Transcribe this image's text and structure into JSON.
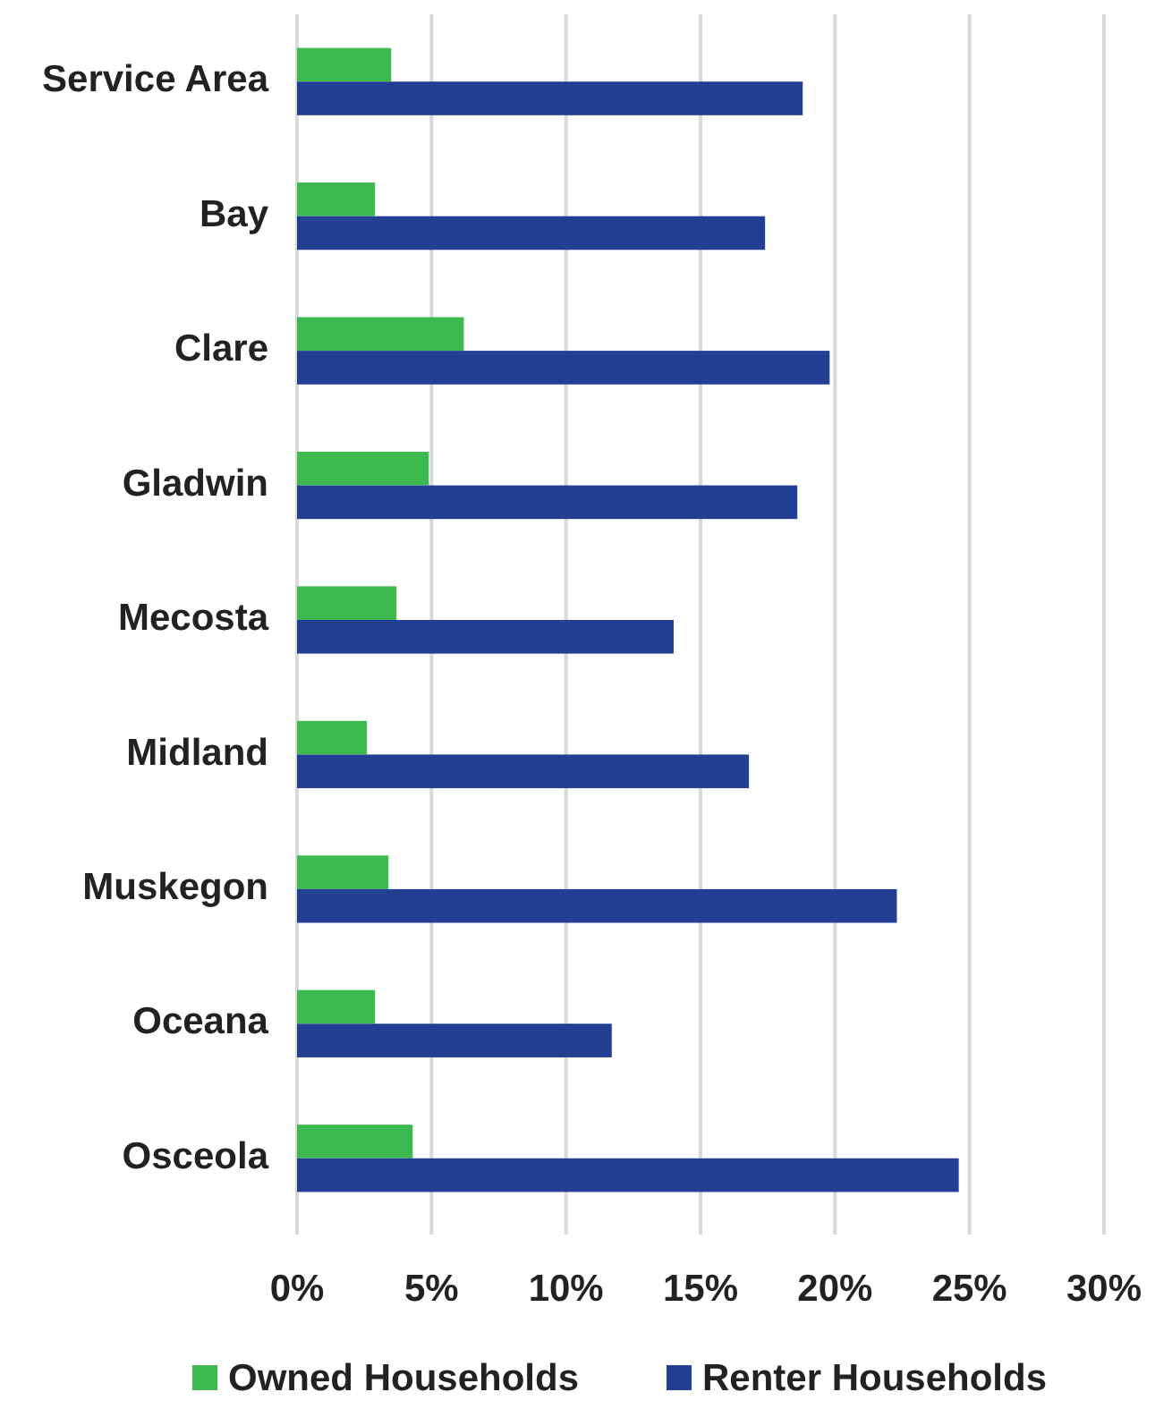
{
  "chart_data": {
    "type": "bar",
    "orientation": "horizontal",
    "categories": [
      "Service Area",
      "Bay",
      "Clare",
      "Gladwin",
      "Mecosta",
      "Midland",
      "Muskegon",
      "Oceana",
      "Osceola"
    ],
    "series": [
      {
        "name": "Owned Households",
        "color": "#3cb94f",
        "values": [
          3.5,
          2.9,
          6.2,
          4.9,
          3.7,
          2.6,
          3.4,
          2.9,
          4.3
        ]
      },
      {
        "name": "Renter Households",
        "color": "#233f94",
        "values": [
          18.8,
          17.4,
          19.8,
          18.6,
          14.0,
          16.8,
          22.3,
          11.7,
          24.6
        ]
      }
    ],
    "xlim": [
      0,
      30
    ],
    "xticks": [
      {
        "value": 0,
        "label": "0%"
      },
      {
        "value": 5,
        "label": "5%"
      },
      {
        "value": 10,
        "label": "10%"
      },
      {
        "value": 15,
        "label": "15%"
      },
      {
        "value": 20,
        "label": "20%"
      },
      {
        "value": 25,
        "label": "25%"
      },
      {
        "value": 30,
        "label": "30%"
      }
    ],
    "grid": "x",
    "legend": "bottom"
  }
}
